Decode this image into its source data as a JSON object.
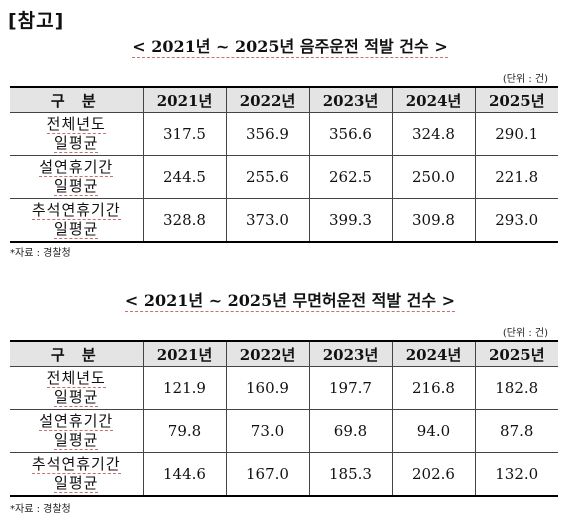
{
  "ref_label": "[참고]",
  "sections": [
    {
      "title": "< 2021년 ~ 2025년 음주운전 적발 건수 >",
      "unit": "(단위 : 건)",
      "header": [
        "구 분",
        "2021년",
        "2022년",
        "2023년",
        "2024년",
        "2025년"
      ],
      "rows": [
        {
          "label_1": "전체년도",
          "label_2": "일평균",
          "values": [
            "317.5",
            "356.9",
            "356.6",
            "324.8",
            "290.1"
          ]
        },
        {
          "label_1": "설연휴기간",
          "label_2": "일평균",
          "values": [
            "244.5",
            "255.6",
            "262.5",
            "250.0",
            "221.8"
          ]
        },
        {
          "label_1": "추석연휴기간",
          "label_2": "일평균",
          "values": [
            "328.8",
            "373.0",
            "399.3",
            "309.8",
            "293.0"
          ]
        }
      ],
      "source": "*자료 : 경찰청"
    },
    {
      "title": "< 2021년 ~ 2025년 무면허운전 적발 건수 >",
      "unit": "(단위 : 건)",
      "header": [
        "구 분",
        "2021년",
        "2022년",
        "2023년",
        "2024년",
        "2025년"
      ],
      "rows": [
        {
          "label_1": "전체년도",
          "label_2": "일평균",
          "values": [
            "121.9",
            "160.9",
            "197.7",
            "216.8",
            "182.8"
          ]
        },
        {
          "label_1": "설연휴기간",
          "label_2": "일평균",
          "values": [
            "79.8",
            "73.0",
            "69.8",
            "94.0",
            "87.8"
          ]
        },
        {
          "label_1": "추석연휴기간",
          "label_2": "일평균",
          "values": [
            "144.6",
            "167.0",
            "185.3",
            "202.6",
            "132.0"
          ]
        }
      ],
      "source": "*자료 : 경찰청"
    }
  ]
}
